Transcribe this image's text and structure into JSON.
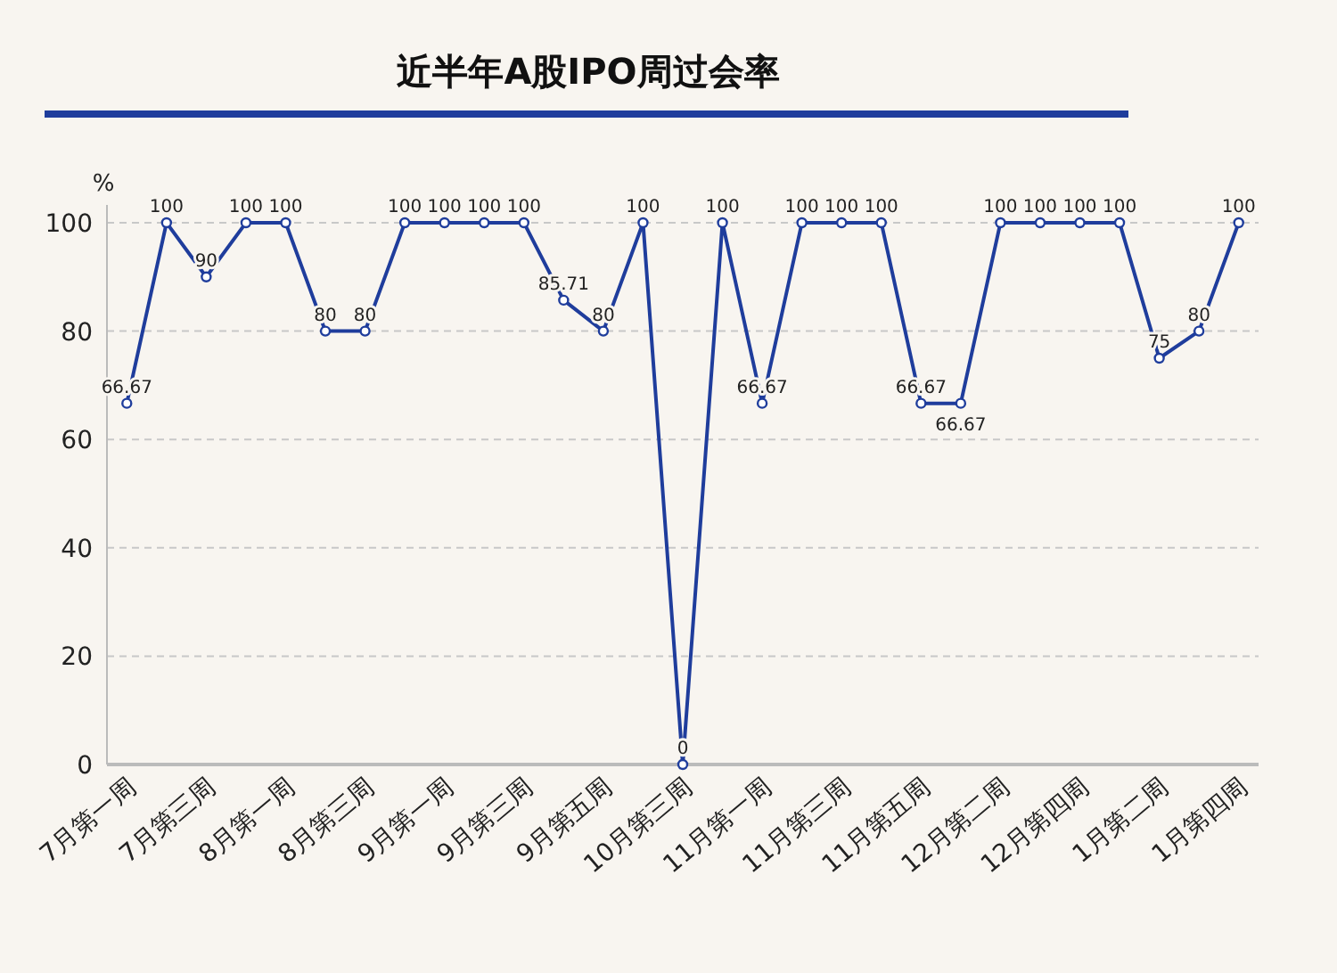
{
  "chart_data": {
    "type": "line",
    "title": "近半年A股IPO周过会率",
    "ylabel": "%",
    "categories": [
      "7月第一周",
      null,
      "7月第三周",
      null,
      "8月第一周",
      null,
      "8月第三周",
      null,
      "9月第一周",
      null,
      "9月第三周",
      null,
      "9月第五周",
      null,
      "10月第三周",
      null,
      "11月第一周",
      null,
      "11月第三周",
      null,
      "11月第五周",
      null,
      "12月第二周",
      null,
      "12月第四周",
      null,
      "1月第二周",
      null,
      "1月第四周"
    ],
    "series": [
      {
        "color": "#1f3d9c",
        "values": [
          66.67,
          100,
          90,
          100,
          100,
          80,
          80,
          100,
          100,
          100,
          100,
          85.71,
          80,
          100,
          0,
          100,
          66.67,
          100,
          100,
          100,
          66.67,
          66.67,
          100,
          100,
          100,
          100,
          75,
          80,
          100
        ]
      }
    ],
    "ylim": [
      0,
      100
    ],
    "yticks": [
      0,
      20,
      40,
      60,
      80,
      100
    ],
    "grid": "y",
    "marker": "circle",
    "line_style": "solid",
    "data_labels": true
  }
}
